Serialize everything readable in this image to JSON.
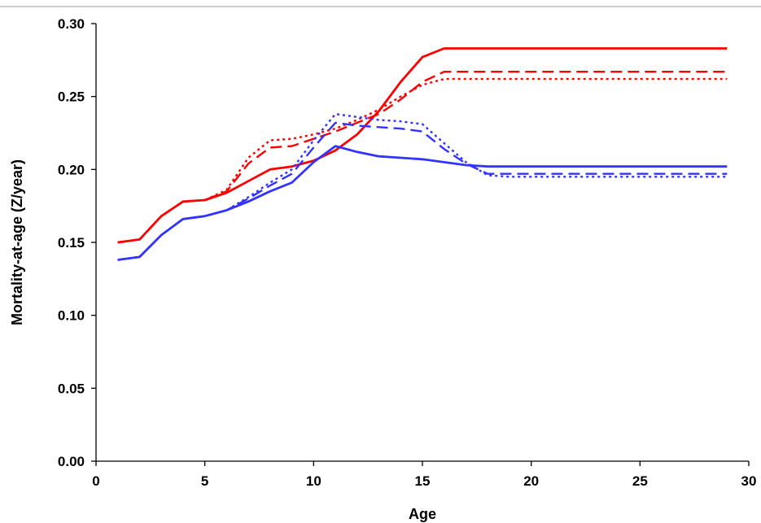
{
  "chart_data": {
    "type": "line",
    "title": "",
    "xlabel": "Age",
    "ylabel": "Mortality-at-age (Z/year)",
    "xlim": [
      0,
      30
    ],
    "ylim": [
      0,
      0.3
    ],
    "x_ticks": [
      "0",
      "5",
      "10",
      "15",
      "20",
      "25",
      "30"
    ],
    "y_ticks": [
      "0.00",
      "0.05",
      "0.10",
      "0.15",
      "0.20",
      "0.25",
      "0.30"
    ],
    "grid": false,
    "legend": "none",
    "x": [
      1,
      2,
      3,
      4,
      5,
      6,
      7,
      8,
      9,
      10,
      11,
      12,
      13,
      14,
      15,
      16,
      17,
      18,
      19,
      20,
      21,
      22,
      23,
      24,
      25,
      26,
      27,
      28,
      29
    ],
    "series": [
      {
        "color": "#ff0000",
        "style": "solid",
        "values": [
          0.15,
          0.152,
          0.168,
          0.178,
          0.179,
          0.184,
          0.192,
          0.2,
          0.202,
          0.206,
          0.213,
          0.224,
          0.24,
          0.26,
          0.277,
          0.283,
          0.283,
          0.283,
          0.283,
          0.283,
          0.283,
          0.283,
          0.283,
          0.283,
          0.283,
          0.283,
          0.283,
          0.283,
          0.283
        ]
      },
      {
        "color": "#ff0000",
        "style": "dashed",
        "values": [
          0.15,
          0.152,
          0.168,
          0.178,
          0.179,
          0.185,
          0.204,
          0.215,
          0.216,
          0.221,
          0.226,
          0.232,
          0.238,
          0.248,
          0.26,
          0.267,
          0.267,
          0.267,
          0.267,
          0.267,
          0.267,
          0.267,
          0.267,
          0.267,
          0.267,
          0.267,
          0.267,
          0.267,
          0.267
        ]
      },
      {
        "color": "#ff0000",
        "style": "dotted",
        "values": [
          0.15,
          0.152,
          0.168,
          0.178,
          0.179,
          0.186,
          0.208,
          0.22,
          0.221,
          0.224,
          0.228,
          0.234,
          0.241,
          0.25,
          0.258,
          0.262,
          0.262,
          0.262,
          0.262,
          0.262,
          0.262,
          0.262,
          0.262,
          0.262,
          0.262,
          0.262,
          0.262,
          0.262,
          0.262
        ]
      },
      {
        "color": "#3333ff",
        "style": "solid",
        "values": [
          0.138,
          0.14,
          0.155,
          0.166,
          0.168,
          0.172,
          0.178,
          0.185,
          0.191,
          0.205,
          0.216,
          0.212,
          0.209,
          0.208,
          0.207,
          0.205,
          0.203,
          0.202,
          0.202,
          0.202,
          0.202,
          0.202,
          0.202,
          0.202,
          0.202,
          0.202,
          0.202,
          0.202,
          0.202
        ]
      },
      {
        "color": "#3333ff",
        "style": "dashed",
        "values": [
          0.138,
          0.14,
          0.155,
          0.166,
          0.168,
          0.172,
          0.18,
          0.189,
          0.197,
          0.215,
          0.232,
          0.23,
          0.229,
          0.228,
          0.226,
          0.214,
          0.204,
          0.197,
          0.197,
          0.197,
          0.197,
          0.197,
          0.197,
          0.197,
          0.197,
          0.197,
          0.197,
          0.197,
          0.197
        ]
      },
      {
        "color": "#3333ff",
        "style": "dotted",
        "values": [
          0.138,
          0.14,
          0.155,
          0.166,
          0.168,
          0.172,
          0.181,
          0.191,
          0.2,
          0.22,
          0.238,
          0.236,
          0.234,
          0.233,
          0.231,
          0.218,
          0.205,
          0.196,
          0.195,
          0.195,
          0.195,
          0.195,
          0.195,
          0.195,
          0.195,
          0.195,
          0.195,
          0.195,
          0.195
        ]
      }
    ]
  }
}
